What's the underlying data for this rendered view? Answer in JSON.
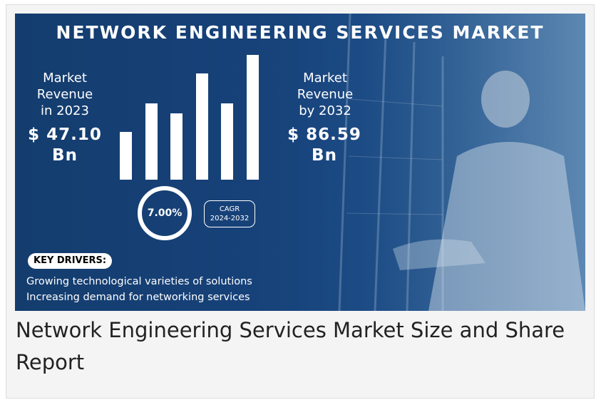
{
  "banner": {
    "title": "NETWORK ENGINEERING SERVICES MARKET",
    "left_stat": {
      "label_lines": [
        "Market",
        "Revenue",
        "in 2023"
      ],
      "value_lines": [
        "$ 47.10",
        "Bn"
      ]
    },
    "right_stat": {
      "label_lines": [
        "Market",
        "Revenue",
        "by 2032"
      ],
      "value_lines": [
        "$ 86.59",
        "Bn"
      ]
    },
    "growth_bars": {
      "relative_heights": [
        0.38,
        0.61,
        0.53,
        0.85,
        0.61,
        1.0
      ]
    },
    "cagr": {
      "value": "7.00%",
      "label": "CAGR",
      "period": "2024-2032"
    },
    "key_drivers": {
      "heading": "KEY DRIVERS:",
      "items": [
        "Growing technological varieties of solutions",
        "Increasing demand for networking services"
      ]
    },
    "colors": {
      "background": "#143d6e",
      "text": "#ffffff"
    }
  },
  "caption": "Network Engineering Services Market Size and Share Report"
}
